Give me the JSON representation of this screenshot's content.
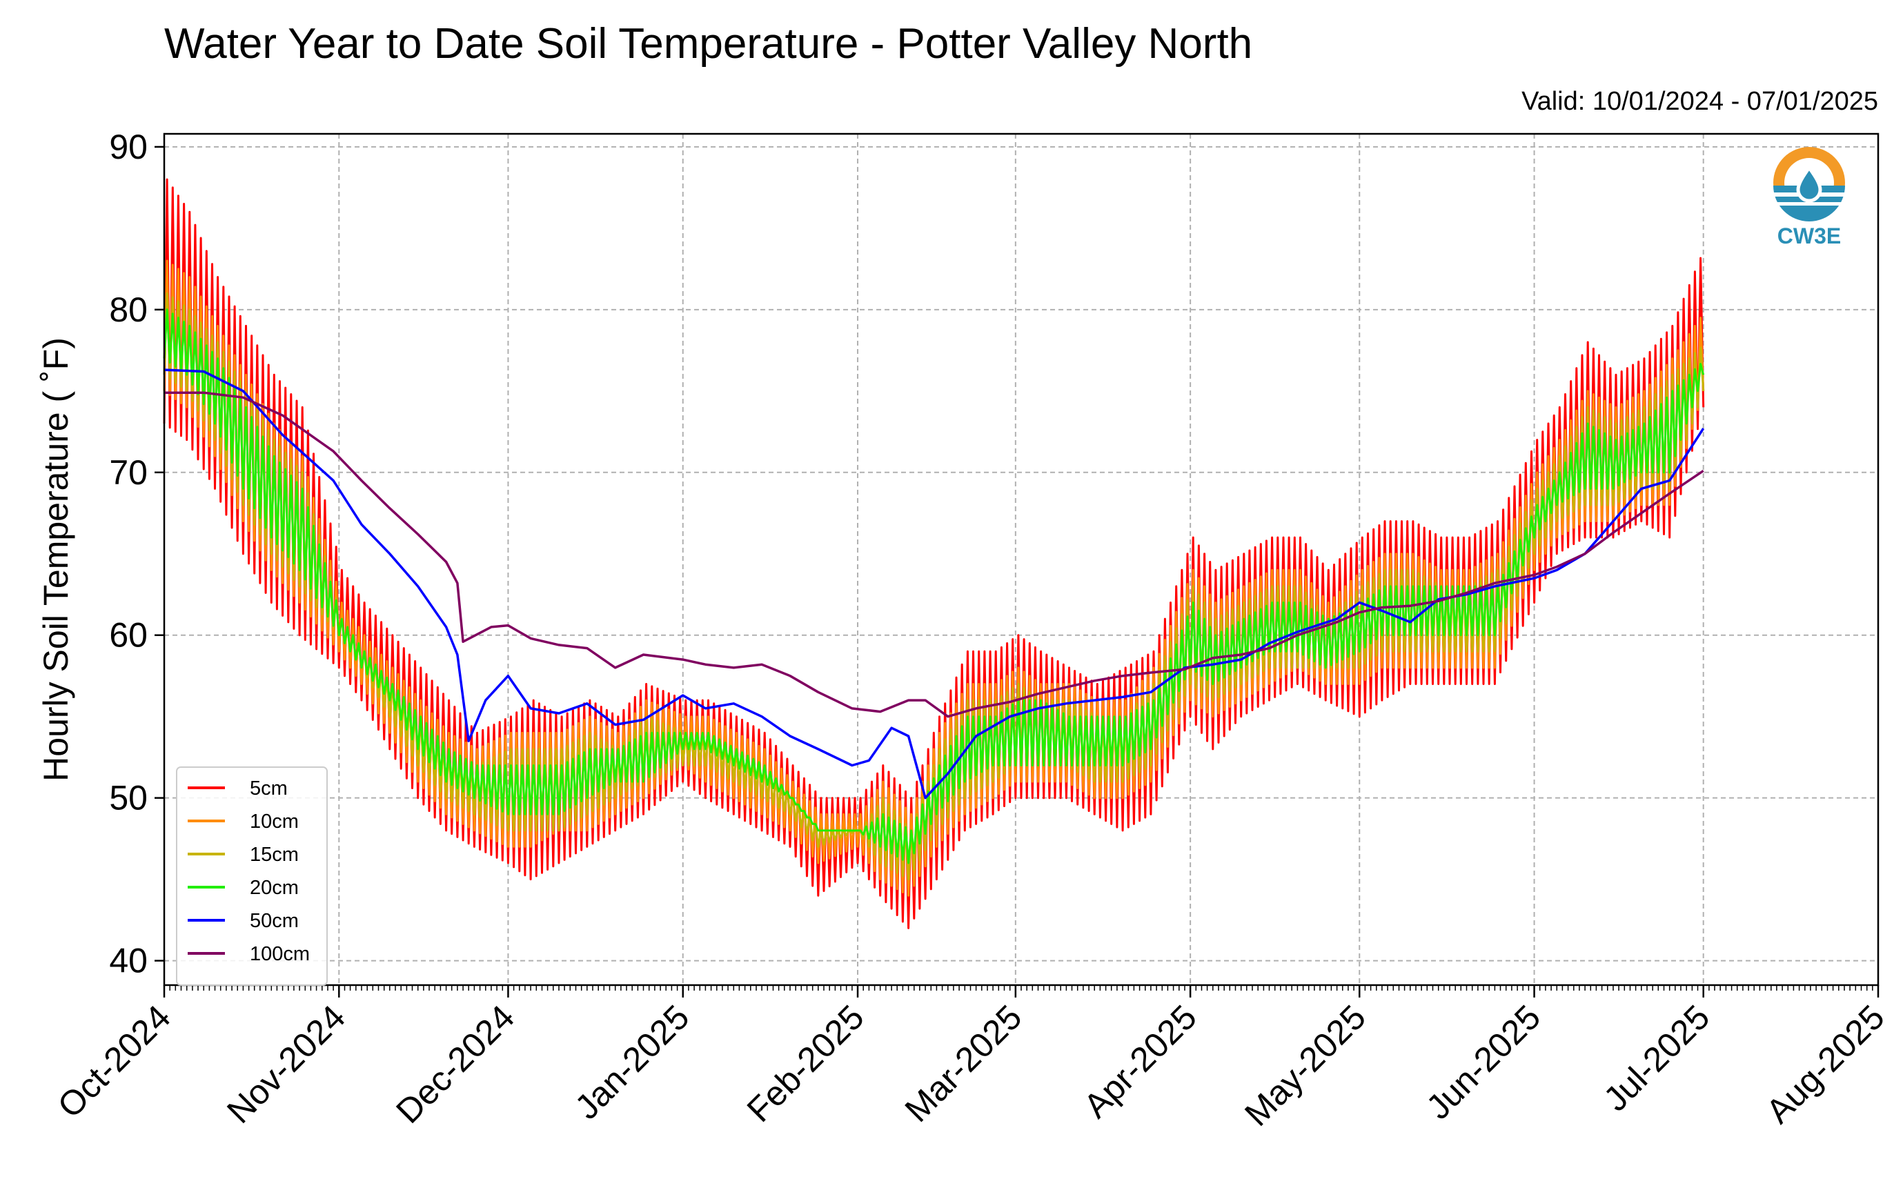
{
  "chart_data": {
    "type": "line",
    "title": "Water Year to Date Soil Temperature - Potter Valley North",
    "subtitle": "Valid: 10/01/2024 - 07/01/2025",
    "xlabel": "",
    "ylabel": "Hourly Soil Temperature ( ˚F)",
    "xlim": [
      "2024-10-01",
      "2025-08-01"
    ],
    "ylim": [
      38.5,
      90.8
    ],
    "x_ticks": [
      "Oct-2024",
      "Nov-2024",
      "Dec-2024",
      "Jan-2025",
      "Feb-2025",
      "Mar-2025",
      "Apr-2025",
      "May-2025",
      "Jun-2025",
      "Jul-2025",
      "Aug-2025"
    ],
    "y_ticks": [
      40,
      50,
      60,
      70,
      80,
      90
    ],
    "grid": true,
    "legend_position": "lower-left",
    "logo_text": "CW3E",
    "series": [
      {
        "name": "5cm",
        "color": "#ff0000",
        "x": [
          "2024-10-01",
          "2024-10-05",
          "2024-10-10",
          "2024-10-15",
          "2024-10-20",
          "2024-10-25",
          "2024-11-01",
          "2024-11-05",
          "2024-11-10",
          "2024-11-15",
          "2024-11-20",
          "2024-11-25",
          "2024-12-01",
          "2024-12-05",
          "2024-12-10",
          "2024-12-15",
          "2024-12-20",
          "2024-12-25",
          "2025-01-01",
          "2025-01-05",
          "2025-01-10",
          "2025-01-15",
          "2025-01-20",
          "2025-01-25",
          "2025-02-01",
          "2025-02-05",
          "2025-02-10",
          "2025-02-15",
          "2025-02-20",
          "2025-02-25",
          "2025-03-01",
          "2025-03-05",
          "2025-03-10",
          "2025-03-15",
          "2025-03-20",
          "2025-03-25",
          "2025-04-01",
          "2025-04-05",
          "2025-04-10",
          "2025-04-15",
          "2025-04-20",
          "2025-04-25",
          "2025-05-01",
          "2025-05-05",
          "2025-05-10",
          "2025-05-15",
          "2025-05-20",
          "2025-05-25",
          "2025-06-01",
          "2025-06-05",
          "2025-06-10",
          "2025-06-15",
          "2025-06-20",
          "2025-06-25",
          "2025-07-01"
        ],
        "y_min": [
          73,
          72,
          69,
          65,
          62,
          60,
          58,
          56,
          53,
          50,
          48,
          47,
          46,
          45,
          46,
          47,
          48,
          49,
          51,
          50,
          49,
          48,
          47,
          44,
          46,
          44,
          42,
          45,
          48,
          49,
          50,
          50,
          50,
          49,
          48,
          49,
          55,
          53,
          55,
          56,
          57,
          56,
          55,
          56,
          57,
          57,
          57,
          57,
          62,
          65,
          66,
          66,
          67,
          66,
          74
        ],
        "y_max": [
          88,
          86,
          82,
          79,
          76,
          74,
          64,
          62,
          60,
          58,
          56,
          54,
          55,
          56,
          55,
          56,
          55,
          57,
          56,
          56,
          55,
          54,
          52,
          50,
          50,
          52,
          50,
          55,
          59,
          59,
          60,
          59,
          58,
          57,
          58,
          59,
          66,
          64,
          65,
          66,
          66,
          64,
          66,
          67,
          67,
          66,
          66,
          67,
          72,
          74,
          78,
          76,
          77,
          79,
          84
        ]
      },
      {
        "name": "10cm",
        "color": "#ff8c00",
        "x": [
          "2024-10-01",
          "2024-10-05",
          "2024-10-10",
          "2024-10-15",
          "2024-10-20",
          "2024-10-25",
          "2024-11-01",
          "2024-11-05",
          "2024-11-10",
          "2024-11-15",
          "2024-11-20",
          "2024-11-25",
          "2024-12-01",
          "2024-12-05",
          "2024-12-10",
          "2024-12-15",
          "2024-12-20",
          "2024-12-25",
          "2025-01-01",
          "2025-01-05",
          "2025-01-10",
          "2025-01-15",
          "2025-01-20",
          "2025-01-25",
          "2025-02-01",
          "2025-02-05",
          "2025-02-10",
          "2025-02-15",
          "2025-02-20",
          "2025-02-25",
          "2025-03-01",
          "2025-03-05",
          "2025-03-10",
          "2025-03-15",
          "2025-03-20",
          "2025-03-25",
          "2025-04-01",
          "2025-04-05",
          "2025-04-10",
          "2025-04-15",
          "2025-04-20",
          "2025-04-25",
          "2025-05-01",
          "2025-05-05",
          "2025-05-10",
          "2025-05-15",
          "2025-05-20",
          "2025-05-25",
          "2025-06-01",
          "2025-06-05",
          "2025-06-10",
          "2025-06-15",
          "2025-06-20",
          "2025-06-25",
          "2025-07-01"
        ],
        "y_min": [
          75,
          74,
          71,
          67,
          64,
          62,
          59,
          57,
          54,
          51,
          49,
          48,
          47,
          47,
          48,
          48,
          49,
          50,
          52,
          51,
          50,
          49,
          48,
          46,
          47,
          45,
          44,
          47,
          49,
          50,
          51,
          51,
          51,
          50,
          50,
          51,
          56,
          55,
          56,
          57,
          58,
          57,
          57,
          58,
          58,
          58,
          58,
          58,
          64,
          66,
          67,
          67,
          68,
          68,
          75
        ],
        "y_max": [
          83,
          82,
          79,
          76,
          73,
          71,
          62,
          60,
          58,
          56,
          54,
          53,
          54,
          54,
          54,
          55,
          54,
          56,
          55,
          55,
          54,
          53,
          51,
          49,
          49,
          51,
          49,
          54,
          57,
          57,
          58,
          57,
          57,
          56,
          56,
          58,
          64,
          62,
          63,
          64,
          64,
          62,
          64,
          65,
          65,
          64,
          64,
          65,
          70,
          72,
          75,
          74,
          75,
          77,
          80
        ]
      },
      {
        "name": "15cm",
        "color": "#c8b400",
        "x": [
          "2024-10-01",
          "2024-10-05",
          "2024-10-10",
          "2024-10-15",
          "2024-10-20",
          "2024-10-25",
          "2024-11-01",
          "2024-11-05",
          "2024-11-10",
          "2024-11-15",
          "2024-11-20",
          "2024-11-25",
          "2024-12-01",
          "2024-12-05",
          "2024-12-10",
          "2024-12-15",
          "2024-12-20",
          "2024-12-25",
          "2025-01-01",
          "2025-01-05",
          "2025-01-10",
          "2025-01-15",
          "2025-01-20",
          "2025-01-25",
          "2025-02-01",
          "2025-02-05",
          "2025-02-10",
          "2025-02-15",
          "2025-02-20",
          "2025-02-25",
          "2025-03-01",
          "2025-03-05",
          "2025-03-10",
          "2025-03-15",
          "2025-03-20",
          "2025-03-25",
          "2025-04-01",
          "2025-04-05",
          "2025-04-10",
          "2025-04-15",
          "2025-04-20",
          "2025-04-25",
          "2025-05-01",
          "2025-05-05",
          "2025-05-10",
          "2025-05-15",
          "2025-05-20",
          "2025-05-25",
          "2025-06-01",
          "2025-06-05",
          "2025-06-10",
          "2025-06-15",
          "2025-06-20",
          "2025-06-25",
          "2025-07-01"
        ],
        "y_min": [
          76,
          75,
          72,
          68,
          65,
          63,
          60,
          58,
          55,
          52,
          50,
          49,
          48,
          48,
          48,
          49,
          50,
          51,
          52,
          52,
          51,
          50,
          49,
          47,
          48,
          46,
          45,
          48,
          50,
          51,
          52,
          52,
          52,
          51,
          51,
          52,
          57,
          56,
          57,
          58,
          58,
          58,
          58,
          59,
          59,
          59,
          59,
          59,
          65,
          67,
          68,
          68,
          69,
          69,
          75
        ],
        "y_max": [
          81,
          80,
          78,
          75,
          72,
          70,
          61,
          59,
          57,
          55,
          53,
          52,
          53,
          53,
          53,
          54,
          53,
          55,
          54,
          54,
          53,
          52,
          50,
          48,
          48,
          50,
          48,
          53,
          56,
          56,
          57,
          56,
          56,
          55,
          55,
          57,
          63,
          61,
          62,
          63,
          63,
          61,
          63,
          64,
          64,
          63,
          63,
          64,
          69,
          71,
          74,
          73,
          74,
          76,
          78
        ]
      },
      {
        "name": "20cm",
        "color": "#22ee00",
        "x": [
          "2024-10-01",
          "2024-10-05",
          "2024-10-10",
          "2024-10-15",
          "2024-10-20",
          "2024-10-25",
          "2024-11-01",
          "2024-11-05",
          "2024-11-10",
          "2024-11-15",
          "2024-11-20",
          "2024-11-25",
          "2024-12-01",
          "2024-12-05",
          "2024-12-10",
          "2024-12-15",
          "2024-12-20",
          "2024-12-25",
          "2025-01-01",
          "2025-01-05",
          "2025-01-10",
          "2025-01-15",
          "2025-01-20",
          "2025-01-25",
          "2025-02-01",
          "2025-02-05",
          "2025-02-10",
          "2025-02-15",
          "2025-02-20",
          "2025-02-25",
          "2025-03-01",
          "2025-03-05",
          "2025-03-10",
          "2025-03-15",
          "2025-03-20",
          "2025-03-25",
          "2025-04-01",
          "2025-04-05",
          "2025-04-10",
          "2025-04-15",
          "2025-04-20",
          "2025-04-25",
          "2025-05-01",
          "2025-05-05",
          "2025-05-10",
          "2025-05-15",
          "2025-05-20",
          "2025-05-25",
          "2025-06-01",
          "2025-06-05",
          "2025-06-10",
          "2025-06-15",
          "2025-06-20",
          "2025-06-25",
          "2025-07-01"
        ],
        "y_min": [
          77,
          76,
          73,
          69,
          66,
          64,
          60,
          58,
          56,
          53,
          51,
          50,
          49,
          49,
          49,
          50,
          51,
          51,
          53,
          53,
          52,
          51,
          50,
          48,
          48,
          47,
          46,
          49,
          51,
          52,
          52,
          52,
          52,
          52,
          52,
          53,
          58,
          57,
          58,
          59,
          59,
          58,
          59,
          60,
          60,
          60,
          60,
          60,
          66,
          68,
          69,
          69,
          70,
          70,
          76
        ],
        "y_max": [
          80,
          79,
          77,
          74,
          71,
          69,
          61,
          59,
          57,
          55,
          53,
          52,
          52,
          52,
          52,
          53,
          53,
          54,
          54,
          54,
          53,
          52,
          50,
          48,
          48,
          49,
          48,
          52,
          55,
          55,
          56,
          56,
          55,
          55,
          55,
          56,
          62,
          60,
          61,
          62,
          62,
          61,
          62,
          63,
          63,
          63,
          63,
          63,
          68,
          70,
          73,
          72,
          73,
          75,
          77
        ]
      },
      {
        "name": "50cm",
        "color": "#0000ff",
        "x": [
          "2024-10-01",
          "2024-10-08",
          "2024-10-15",
          "2024-10-22",
          "2024-10-31",
          "2024-11-05",
          "2024-11-10",
          "2024-11-15",
          "2024-11-20",
          "2024-11-22",
          "2024-11-24",
          "2024-11-27",
          "2024-12-01",
          "2024-12-05",
          "2024-12-10",
          "2024-12-15",
          "2024-12-20",
          "2024-12-25",
          "2025-01-01",
          "2025-01-05",
          "2025-01-10",
          "2025-01-15",
          "2025-01-20",
          "2025-01-25",
          "2025-01-31",
          "2025-02-03",
          "2025-02-07",
          "2025-02-10",
          "2025-02-13",
          "2025-02-17",
          "2025-02-22",
          "2025-02-28",
          "2025-03-05",
          "2025-03-10",
          "2025-03-15",
          "2025-03-20",
          "2025-03-25",
          "2025-03-31",
          "2025-04-05",
          "2025-04-10",
          "2025-04-15",
          "2025-04-20",
          "2025-04-27",
          "2025-05-01",
          "2025-05-05",
          "2025-05-10",
          "2025-05-15",
          "2025-05-20",
          "2025-05-25",
          "2025-06-01",
          "2025-06-05",
          "2025-06-10",
          "2025-06-15",
          "2025-06-20",
          "2025-06-25",
          "2025-07-01"
        ],
        "y": [
          76.3,
          76.2,
          75.0,
          72.3,
          69.5,
          66.8,
          65.0,
          63.0,
          60.5,
          58.8,
          53.5,
          56.0,
          57.5,
          55.5,
          55.2,
          55.8,
          54.5,
          54.8,
          56.3,
          55.5,
          55.8,
          55.0,
          53.8,
          53.0,
          52.0,
          52.3,
          54.3,
          53.8,
          50.0,
          51.5,
          53.8,
          55.0,
          55.5,
          55.8,
          56.0,
          56.2,
          56.5,
          58.0,
          58.2,
          58.5,
          59.5,
          60.2,
          61.0,
          62.0,
          61.5,
          60.8,
          62.2,
          62.5,
          63.0,
          63.5,
          64.0,
          65.0,
          67.0,
          69.0,
          69.5,
          72.7
        ]
      },
      {
        "name": "100cm",
        "color": "#800060",
        "x": [
          "2024-10-01",
          "2024-10-08",
          "2024-10-15",
          "2024-10-22",
          "2024-10-31",
          "2024-11-05",
          "2024-11-10",
          "2024-11-15",
          "2024-11-20",
          "2024-11-22",
          "2024-11-23",
          "2024-11-28",
          "2024-12-01",
          "2024-12-05",
          "2024-12-10",
          "2024-12-15",
          "2024-12-20",
          "2024-12-25",
          "2025-01-01",
          "2025-01-05",
          "2025-01-10",
          "2025-01-15",
          "2025-01-20",
          "2025-01-25",
          "2025-01-31",
          "2025-02-05",
          "2025-02-10",
          "2025-02-13",
          "2025-02-17",
          "2025-02-22",
          "2025-02-28",
          "2025-03-05",
          "2025-03-10",
          "2025-03-15",
          "2025-03-20",
          "2025-03-25",
          "2025-03-31",
          "2025-04-05",
          "2025-04-10",
          "2025-04-15",
          "2025-04-20",
          "2025-04-27",
          "2025-05-01",
          "2025-05-05",
          "2025-05-10",
          "2025-05-15",
          "2025-05-20",
          "2025-05-25",
          "2025-06-01",
          "2025-06-05",
          "2025-06-10",
          "2025-06-15",
          "2025-06-20",
          "2025-06-25",
          "2025-07-01"
        ],
        "y": [
          74.9,
          74.9,
          74.6,
          73.5,
          71.3,
          69.5,
          67.8,
          66.2,
          64.5,
          63.2,
          59.6,
          60.5,
          60.6,
          59.8,
          59.4,
          59.2,
          58.0,
          58.8,
          58.5,
          58.2,
          58.0,
          58.2,
          57.5,
          56.5,
          55.5,
          55.3,
          56.0,
          56.0,
          55.0,
          55.5,
          55.9,
          56.4,
          56.8,
          57.2,
          57.5,
          57.7,
          57.9,
          58.6,
          58.8,
          59.2,
          60.0,
          60.8,
          61.4,
          61.7,
          61.8,
          62.1,
          62.6,
          63.2,
          63.7,
          64.2,
          65.0,
          66.3,
          67.5,
          68.7,
          70.1
        ]
      }
    ]
  }
}
